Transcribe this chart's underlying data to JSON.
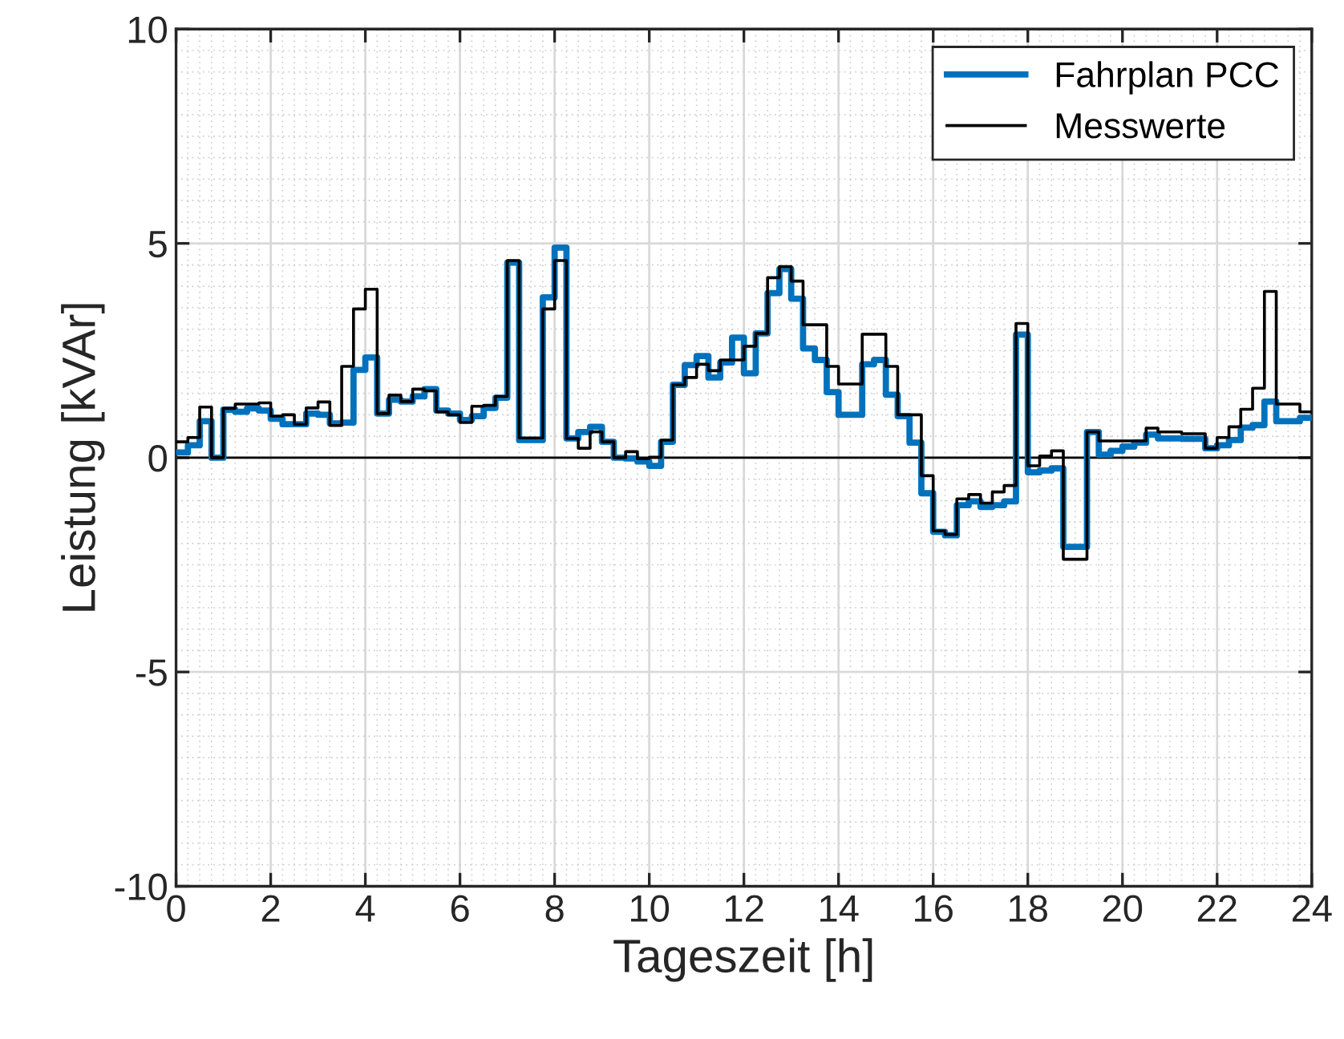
{
  "chart_data": {
    "type": "step",
    "xlabel": "Tageszeit [h]",
    "ylabel": "Leistung [kVAr]",
    "xlim": [
      0,
      24
    ],
    "xticks": [
      0,
      2,
      4,
      6,
      8,
      10,
      12,
      14,
      16,
      18,
      20,
      22,
      24
    ],
    "ylim": [
      -10,
      10
    ],
    "yticks": [
      -10,
      -5,
      0,
      5,
      10
    ],
    "grid": true,
    "legend": "top right",
    "ref_lines": [
      {
        "axis": "y",
        "value": 0,
        "color": "#000000"
      }
    ],
    "series": [
      {
        "name": "Fahrplan PCC",
        "color": "#0072bd",
        "x": [
          0,
          0.25,
          0.5,
          0.75,
          1.0,
          1.25,
          1.5,
          1.75,
          2.0,
          2.25,
          2.75,
          3.0,
          3.25,
          3.5,
          3.75,
          4.0,
          4.25,
          4.5,
          4.75,
          5.0,
          5.25,
          5.5,
          5.75,
          6.0,
          6.25,
          6.5,
          6.75,
          7.0,
          7.25,
          7.75,
          8.0,
          8.25,
          8.5,
          8.75,
          9.0,
          9.25,
          9.5,
          9.75,
          10.0,
          10.25,
          10.5,
          10.75,
          11.0,
          11.25,
          11.5,
          11.75,
          12.0,
          12.25,
          12.5,
          12.75,
          13.0,
          13.25,
          13.5,
          13.75,
          14.0,
          14.5,
          14.75,
          15.0,
          15.25,
          15.5,
          15.75,
          16.0,
          16.25,
          16.5,
          16.75,
          17.0,
          17.25,
          17.5,
          17.75,
          18.0,
          18.25,
          18.5,
          18.75,
          19.25,
          19.5,
          19.75,
          20.0,
          20.25,
          20.5,
          20.75,
          21.25,
          21.75,
          22.0,
          22.25,
          22.5,
          22.75,
          23.0,
          23.25,
          23.75,
          24
        ],
        "values": [
          0.12,
          0.29,
          0.85,
          0,
          1.12,
          1.07,
          1.15,
          1.1,
          0.91,
          0.78,
          1.03,
          1.0,
          0.8,
          0.82,
          2.05,
          2.34,
          1.03,
          1.35,
          1.31,
          1.43,
          1.6,
          1.1,
          1.03,
          0.88,
          0.97,
          1.16,
          1.4,
          4.55,
          0.41,
          3.74,
          4.9,
          0.45,
          0.6,
          0.72,
          0.37,
          0,
          -0.02,
          -0.09,
          -0.19,
          0.37,
          1.7,
          2.16,
          2.37,
          1.87,
          2.22,
          2.8,
          1.97,
          2.9,
          3.84,
          4.4,
          3.71,
          2.55,
          2.28,
          1.53,
          1.0,
          2.18,
          2.28,
          1.47,
          0.97,
          0.35,
          -0.83,
          -1.73,
          -1.81,
          -1.11,
          -1.02,
          -1.15,
          -1.11,
          -1.02,
          2.87,
          -0.34,
          -0.3,
          -0.25,
          -2.08,
          0.6,
          0.07,
          0.16,
          0.26,
          0.35,
          0.54,
          0.45,
          0.44,
          0.22,
          0.29,
          0.41,
          0.7,
          0.76,
          1.31,
          0.85,
          0.93,
          0.93
        ]
      },
      {
        "name": "Messwerte",
        "color": "#000000",
        "x": [
          0,
          0.25,
          0.5,
          0.75,
          1.0,
          1.25,
          1.75,
          2.0,
          2.25,
          2.5,
          2.75,
          3.0,
          3.25,
          3.5,
          3.75,
          4.0,
          4.25,
          4.5,
          4.75,
          5.0,
          5.25,
          5.5,
          5.75,
          6.0,
          6.25,
          6.5,
          6.75,
          7.0,
          7.25,
          7.75,
          8.0,
          8.25,
          8.5,
          8.75,
          9.0,
          9.25,
          9.5,
          9.75,
          10.0,
          10.25,
          10.5,
          10.75,
          11.0,
          11.25,
          11.5,
          12.0,
          12.25,
          12.5,
          12.75,
          13.0,
          13.25,
          13.75,
          14.0,
          14.5,
          15.0,
          15.25,
          15.75,
          16.0,
          16.25,
          16.5,
          16.75,
          17.0,
          17.25,
          17.5,
          17.75,
          18.0,
          18.25,
          18.5,
          18.75,
          19.25,
          19.5,
          20.5,
          20.75,
          21.25,
          21.75,
          22.0,
          22.25,
          22.5,
          22.75,
          23.0,
          23.25,
          23.75,
          24
        ],
        "values": [
          0.37,
          0.47,
          1.18,
          0.0,
          1.15,
          1.25,
          1.28,
          0.97,
          1.0,
          0.78,
          1.16,
          1.3,
          0.75,
          2.13,
          3.47,
          3.93,
          1.03,
          1.46,
          1.31,
          1.6,
          1.56,
          1.07,
          1.0,
          0.82,
          1.2,
          1.22,
          1.43,
          4.6,
          0.46,
          3.47,
          4.6,
          0.45,
          0.22,
          0.6,
          0.37,
          0,
          0.14,
          -0.02,
          0.01,
          0.41,
          1.7,
          1.87,
          2.18,
          2.03,
          2.28,
          2.6,
          2.9,
          4.2,
          4.46,
          4.12,
          3.1,
          2.13,
          1.72,
          2.88,
          2.13,
          1.0,
          -0.42,
          -1.71,
          -1.79,
          -0.96,
          -0.86,
          -1.06,
          -0.8,
          -0.65,
          3.13,
          -0.19,
          0.04,
          0.16,
          -2.37,
          0.6,
          0.39,
          0.69,
          0.6,
          0.56,
          0.22,
          0.47,
          0.72,
          1.13,
          1.62,
          3.88,
          1.25,
          1.07,
          1.07
        ]
      }
    ]
  }
}
